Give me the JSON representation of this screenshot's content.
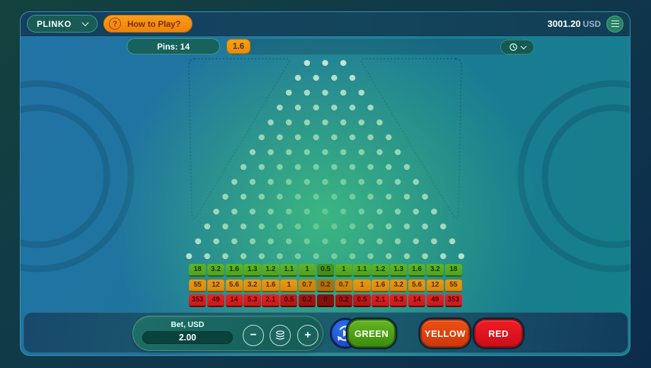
{
  "header": {
    "game_select": {
      "label": "PLINKO"
    },
    "how_to_play": {
      "icon": "?",
      "label": "How to Play?"
    },
    "balance": {
      "amount": "3001.20",
      "currency": "USD"
    }
  },
  "toolbar": {
    "pins_label": "Pins: 14",
    "last_results": [
      "1.6"
    ]
  },
  "board": {
    "pin_rows": 14,
    "top_row_pins": 3,
    "slots": 15
  },
  "multiplier_rows": [
    {
      "name": "green",
      "base": "#5eb528",
      "dark": "#3a7e12",
      "text": "#16350a",
      "values": [
        "18",
        "3.2",
        "1.6",
        "1.3",
        "1.2",
        "1.1",
        "1",
        "0.5",
        "1",
        "1.1",
        "1.2",
        "1.3",
        "1.6",
        "3.2",
        "18"
      ],
      "shades": [
        0,
        0,
        0,
        0,
        0,
        0,
        0,
        2,
        0,
        0,
        0,
        0,
        0,
        0,
        0
      ]
    },
    {
      "name": "yellow",
      "base": "#ec9a10",
      "dark": "#a96c08",
      "text": "#4c2c06",
      "values": [
        "55",
        "12",
        "5.6",
        "3.2",
        "1.6",
        "1",
        "0.7",
        "0.2",
        "0.7",
        "1",
        "1.6",
        "3.2",
        "5.6",
        "12",
        "55"
      ],
      "shades": [
        0,
        0,
        0,
        0,
        0,
        0,
        1,
        3,
        1,
        0,
        0,
        0,
        0,
        0,
        0
      ]
    },
    {
      "name": "red",
      "base": "#ee2024",
      "dark": "#7e0d0a",
      "text": "#3c0706",
      "values": [
        "353",
        "49",
        "14",
        "5.3",
        "2.1",
        "0.5",
        "0.2",
        "0",
        "0.2",
        "0.5",
        "2.1",
        "5.3",
        "14",
        "49",
        "353"
      ],
      "shades": [
        0,
        0,
        0,
        0,
        0,
        1,
        2,
        3,
        2,
        1,
        0,
        0,
        0,
        0,
        0
      ]
    }
  ],
  "bet_panel": {
    "label": "Bet, USD",
    "value": "2.00"
  },
  "actions": [
    {
      "id": "green",
      "label": "GREEN",
      "top": "#63b51f",
      "bottom": "#3f8c0e",
      "edge": "#2c6a0a"
    },
    {
      "id": "yellow",
      "label": "YELLOW",
      "top": "#ec4f12",
      "bottom": "#cd380b",
      "edge": "#99290a"
    },
    {
      "id": "red",
      "label": "RED",
      "top": "#f01b22",
      "bottom": "#cd0e1a",
      "edge": "#970b13"
    }
  ],
  "colors": {
    "accent_orange": "#ee8b0b",
    "autoplay_blue": "#1d4fd4",
    "pin": "#f2f5f3",
    "panel_border": "#3a8ab8"
  }
}
